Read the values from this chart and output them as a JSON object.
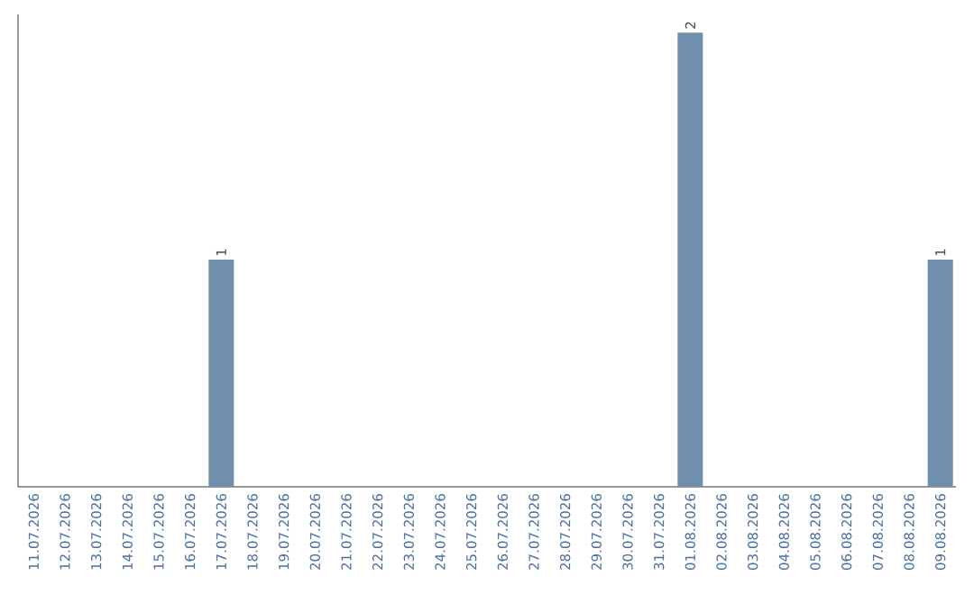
{
  "chart_data": {
    "type": "bar",
    "categories": [
      "11.07.2026",
      "12.07.2026",
      "13.07.2026",
      "14.07.2026",
      "15.07.2026",
      "16.07.2026",
      "17.07.2026",
      "18.07.2026",
      "19.07.2026",
      "20.07.2026",
      "21.07.2026",
      "22.07.2026",
      "23.07.2026",
      "24.07.2026",
      "25.07.2026",
      "26.07.2026",
      "27.07.2026",
      "28.07.2026",
      "29.07.2026",
      "30.07.2026",
      "31.07.2026",
      "01.08.2026",
      "02.08.2026",
      "03.08.2026",
      "04.08.2026",
      "05.08.2026",
      "06.08.2026",
      "07.08.2026",
      "08.08.2026",
      "09.08.2026"
    ],
    "values": [
      0,
      0,
      0,
      0,
      0,
      0,
      1,
      0,
      0,
      0,
      0,
      0,
      0,
      0,
      0,
      0,
      0,
      0,
      0,
      0,
      0,
      2,
      0,
      0,
      0,
      0,
      0,
      0,
      0,
      1
    ],
    "value_labels": [
      null,
      null,
      null,
      null,
      null,
      null,
      "1",
      null,
      null,
      null,
      null,
      null,
      null,
      null,
      null,
      null,
      null,
      null,
      null,
      null,
      null,
      "2",
      null,
      null,
      null,
      null,
      null,
      null,
      null,
      "1"
    ],
    "color": "#6f8fad"
  }
}
